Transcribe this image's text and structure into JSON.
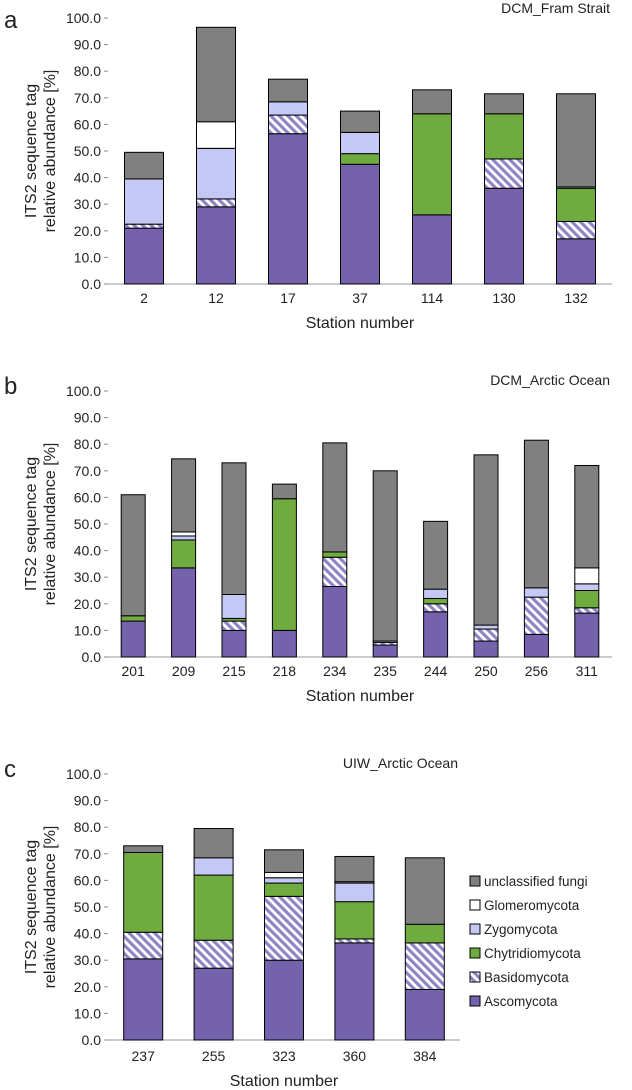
{
  "chart_data": [
    {
      "type": "bar",
      "stacked": true,
      "panel_label": "a",
      "title": "DCM_Fram Strait",
      "xlabel": "Station number",
      "ylabel": [
        "ITS2 sequence tag",
        "relative abundance [%]"
      ],
      "ylim": [
        0,
        100
      ],
      "yticks": [
        "0.0",
        "10.0",
        "20.0",
        "30.0",
        "40.0",
        "50.0",
        "60.0",
        "70.0",
        "80.0",
        "90.0",
        "100.0"
      ],
      "categories": [
        "2",
        "12",
        "17",
        "37",
        "114",
        "130",
        "132"
      ],
      "series": [
        {
          "name": "Ascomycota",
          "values": [
            21,
            29,
            56.5,
            45,
            26,
            36,
            17
          ]
        },
        {
          "name": "Basidomycota",
          "values": [
            1.5,
            3,
            7,
            0,
            0,
            11,
            6.5
          ]
        },
        {
          "name": "Chytridiomycota",
          "values": [
            0,
            0,
            0,
            4,
            38,
            17,
            12.5
          ]
        },
        {
          "name": "Zygomycota",
          "values": [
            17,
            19,
            5,
            8,
            0,
            0,
            0
          ]
        },
        {
          "name": "Glomeromycota",
          "values": [
            0,
            10,
            0,
            0,
            0,
            0,
            0.5
          ]
        },
        {
          "name": "unclassified fungi",
          "values": [
            10,
            35.5,
            8.5,
            8,
            9,
            7.5,
            35
          ]
        }
      ]
    },
    {
      "type": "bar",
      "stacked": true,
      "panel_label": "b",
      "title": "DCM_Arctic Ocean",
      "xlabel": "Station number",
      "ylabel": [
        "ITS2 sequence tag",
        "relative abundance [%]"
      ],
      "ylim": [
        0,
        100
      ],
      "yticks": [
        "0.0",
        "10.0",
        "20.0",
        "30.0",
        "40.0",
        "50.0",
        "60.0",
        "70.0",
        "80.0",
        "90.0",
        "100.0"
      ],
      "categories": [
        "201",
        "209",
        "215",
        "218",
        "234",
        "235",
        "244",
        "250",
        "256",
        "311"
      ],
      "series": [
        {
          "name": "Ascomycota",
          "values": [
            13.5,
            33.5,
            10,
            10,
            26.5,
            4.5,
            17,
            6,
            8.5,
            16.5
          ]
        },
        {
          "name": "Basidomycota",
          "values": [
            0,
            0,
            3.5,
            0,
            11,
            1,
            3,
            4.5,
            14,
            2
          ]
        },
        {
          "name": "Chytridiomycota",
          "values": [
            2,
            10.5,
            1,
            49.5,
            2,
            0,
            2,
            0,
            0,
            6.5
          ]
        },
        {
          "name": "Zygomycota",
          "values": [
            0,
            1.5,
            9,
            0,
            0,
            0,
            3.5,
            1.5,
            3.5,
            2.5
          ]
        },
        {
          "name": "Glomeromycota",
          "values": [
            0,
            1.5,
            0,
            0,
            0,
            0.5,
            0,
            0,
            0,
            6
          ]
        },
        {
          "name": "unclassified fungi",
          "values": [
            45.5,
            27.5,
            49.5,
            5.5,
            41,
            64,
            25.5,
            64,
            55.5,
            38.5
          ]
        }
      ]
    },
    {
      "type": "bar",
      "stacked": true,
      "panel_label": "c",
      "title": "UIW_Arctic Ocean",
      "xlabel": "Station number",
      "ylabel": [
        "ITS2 sequence tag",
        "relative abundance [%]"
      ],
      "ylim": [
        0,
        100
      ],
      "yticks": [
        "0.0",
        "10.0",
        "20.0",
        "30.0",
        "40.0",
        "50.0",
        "60.0",
        "70.0",
        "80.0",
        "90.0",
        "100.0"
      ],
      "categories": [
        "237",
        "255",
        "323",
        "360",
        "384"
      ],
      "series": [
        {
          "name": "Ascomycota",
          "values": [
            30.5,
            27,
            30,
            36.5,
            19
          ]
        },
        {
          "name": "Basidomycota",
          "values": [
            10,
            10.5,
            24,
            1.5,
            17.5
          ]
        },
        {
          "name": "Chytridiomycota",
          "values": [
            30,
            24.5,
            5,
            14,
            7
          ]
        },
        {
          "name": "Zygomycota",
          "values": [
            0,
            6.5,
            2,
            7,
            0
          ]
        },
        {
          "name": "Glomeromycota",
          "values": [
            0,
            0,
            2,
            0.5,
            0
          ]
        },
        {
          "name": "unclassified fungi",
          "values": [
            2.5,
            11,
            8.5,
            9.5,
            25
          ]
        }
      ]
    }
  ],
  "legend": {
    "items": [
      {
        "name": "unclassified fungi",
        "color": "#808080",
        "pattern": "solid"
      },
      {
        "name": "Glomeromycota",
        "color": "#ffffff",
        "pattern": "solid"
      },
      {
        "name": "Zygomycota",
        "color": "#c5c8f5",
        "pattern": "solid"
      },
      {
        "name": "Chytridiomycota",
        "color": "#6fab3f",
        "pattern": "solid"
      },
      {
        "name": "Basidomycota",
        "color": "#8e85c4",
        "pattern": "hatch"
      },
      {
        "name": "Ascomycota",
        "color": "#7462ac",
        "pattern": "solid"
      }
    ]
  }
}
